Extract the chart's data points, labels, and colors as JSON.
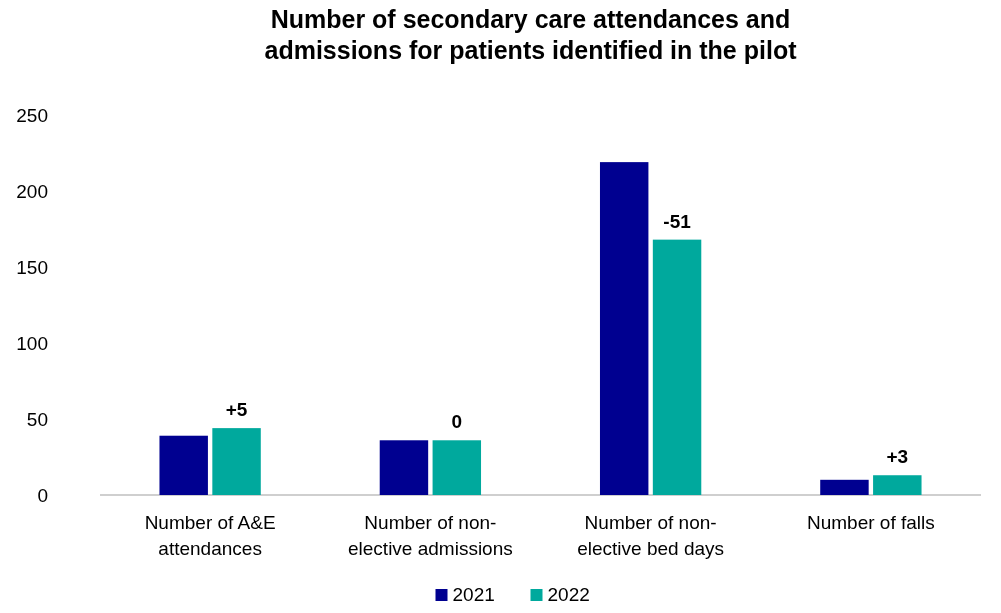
{
  "chart_data": {
    "type": "bar",
    "title": "Number of secondary care attendances and\nadmissions for patients identified in the pilot",
    "categories": [
      "Number of A&E\nattendances",
      "Number of non-\nelective admissions",
      "Number of non-\nelective bed days",
      "Number of falls"
    ],
    "series": [
      {
        "name": "2021",
        "color": "#000090",
        "values": [
          39,
          36,
          219,
          10
        ]
      },
      {
        "name": "2022",
        "color": "#00a99d",
        "values": [
          44,
          36,
          168,
          13
        ]
      }
    ],
    "annotations": [
      {
        "text": "+5",
        "x": "Number of A&E\nattendances",
        "y": 44
      },
      {
        "text": "0",
        "x": "Number of non-\nelective admissions",
        "y": 36
      },
      {
        "text": "-51",
        "x": "Number of non-\nelective bed days",
        "y": 168
      },
      {
        "text": "+3",
        "x": "Number of falls",
        "y": 13
      }
    ],
    "ylim": [
      0,
      250
    ],
    "yticks": [
      0,
      50,
      100,
      150,
      200,
      250
    ],
    "grid": false,
    "legend": "bottom"
  }
}
